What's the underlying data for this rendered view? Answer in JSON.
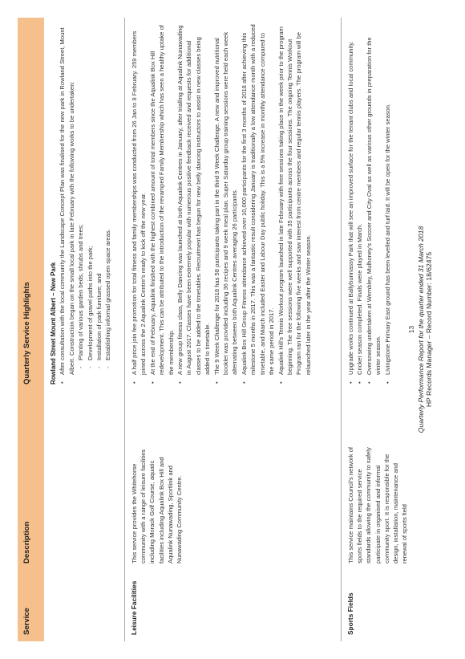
{
  "header": {
    "service": "Service",
    "description": "Description",
    "highlights": "Quarterly Service Highlights"
  },
  "intro": {
    "title": "Rowland Street Mount Albert – New Park",
    "bullet": "After consultation with the local community the Landscape Concept Plan was finalised for the new park in Rowland Street, Mount Albert. Construction began on the small local park in late February with the following works to be undertaken:",
    "subitems": [
      "Planting of various garden beds, shrubs and trees;",
      "Development of gravel paths into the park;",
      "Installation of park furniture; and",
      "Establishing informal grassed open space areas."
    ]
  },
  "rows": [
    {
      "service": "Leisure Facilities",
      "description": "This service provides the Whitehorse community with a range of leisure facilities including Morack Golf Course, aquatic facilities including Aqualink Box Hill and Aqualink Nunawading, Sportlink and Nunawading Community Centre.",
      "bullets": [
        "A half price join fee promotion for total fitness and family memberships was conducted from 26 Jan to 8 February. 259 members joined across the 2 Aqualink Centre's ready to kick off the new year.",
        "At the end of February, Aqualink finished with the highest combined amount of total members since the Aqualink Box Hill redevelopment. This can be attributed to the introduction of the revamped Family Membership which has seen a healthy uptake of the membership.",
        "A new group fitness class, Belly Dancing was launched at both Aqualink Centres in January, after trialling at Aqualink Nunawading in August 2017. Classes have been extremely popular with numerous positive feedback received and requests for additional classes to be added to the timetables. Recruitment has begun for new belly dancing instructors to assist in new classes being added to timetable.",
        "The 9 Week Challenge for 2018 has 58 participants taking part in the third 9 Week Challenge. A new and improved nutritional booklet was provided including 36 recipes and 9 week meal plan. Super Saturday group training sessions were held each week alternating between both Aqualink Centres averaging 26 participants.",
        "Aqualink Box Hill Group Fitness attendance achieved over 10,000 participants for the first 3 months of 2018 after achieving this milestone 5 months in 2017. This was a fantastic result considering January is traditionally a low attendance month with a reduced timetable, and March included Easter and Labour Day public holiday. This is a 5% increase in monthly attendance compared to the same period in 2017.",
        "Aqualink Hill's Tennis Workout program launched in late February with free sessions taking place in the week prior to the program beginning. The free sessions were well supported with 35 participants across the four sessions. The ongoing Tennis Workout Program ran for the following five weeks and saw interest from centre members and regular tennis players. The program will be relaunched later in the year after the Winter season."
      ]
    },
    {
      "service": "Sports Fields",
      "description": "This service maintains Council's network of sports fields to the required service standards allowing the community to safely participate in organised and informal community sport. It is responsible for the design, installation, maintenance and renewal of sports field",
      "bullets": [
        "Upgrade works continued at Ballybunnassy Park that will see an improved surface for the tenant clubs and local community.",
        "Cricket season completed. Finals were played in March.",
        "Oversowing undertaken at Wembley, Mulhoney's Soccer and City Oval as well as various other grounds in preparation for the winter season.",
        "Livingstone Primary East ground has been levelled and turf laid. It will be open for the winter season."
      ]
    }
  ],
  "footer": {
    "page_number": "13",
    "title": "Quarterly Performance Report for the quarter ended 31 March 2018",
    "record": "HP Records Manager – Record Number: 18/62475"
  },
  "colors": {
    "header_bg": "#f6c08d",
    "rule": "#aaaaaa"
  }
}
